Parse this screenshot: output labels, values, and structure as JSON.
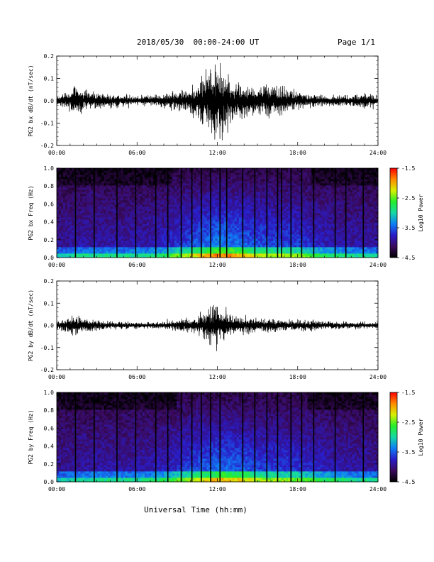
{
  "header": {
    "title": "2018/05/30  00:00-24:00 UT",
    "page": "Page 1/1"
  },
  "x_axis": {
    "label": "Universal Time (hh:mm)",
    "ticks": [
      "00:00",
      "06:00",
      "12:00",
      "18:00",
      "24:00"
    ]
  },
  "colors": {
    "trace": "#000000",
    "colormap": [
      "#000000",
      "#3a0a5c",
      "#2a1cc8",
      "#0f7ef5",
      "#16d9a5",
      "#25ee2b",
      "#d8f000",
      "#ff8a00",
      "#ff0000"
    ]
  },
  "chart_data": [
    {
      "type": "line",
      "title": "",
      "ylabel": "PG2 bx dB/dt (nT/sec)",
      "xlabel": "",
      "xlim": [
        0,
        24
      ],
      "ylim": [
        -0.2,
        0.2
      ],
      "yticks": [
        "0.2",
        "0.1",
        "0.0",
        "-0.1",
        "-0.2"
      ],
      "series": [
        {
          "x": [
            0,
            0.5,
            1,
            1.5,
            2,
            3,
            4,
            5,
            6,
            7,
            8,
            9,
            10,
            10.5,
            11,
            11.5,
            12,
            12.5,
            13,
            14,
            15,
            16,
            17,
            18,
            19,
            20,
            21,
            22,
            23,
            24
          ],
          "values": [
            0.02,
            0.04,
            0.06,
            0.1,
            0.05,
            0.04,
            0.04,
            0.03,
            0.03,
            0.03,
            0.04,
            0.05,
            0.08,
            0.11,
            0.14,
            0.2,
            0.22,
            0.17,
            0.12,
            0.09,
            0.08,
            0.09,
            0.08,
            0.05,
            0.04,
            0.03,
            0.03,
            0.03,
            0.04,
            0.03
          ]
        }
      ]
    },
    {
      "type": "heatmap",
      "title": "",
      "ylabel": "PG2 bx Freq (Hz)",
      "xlabel": "",
      "xlim": [
        0,
        24
      ],
      "ylim": [
        0,
        1.0
      ],
      "yticks": [
        "1.0",
        "0.8",
        "0.6",
        "0.4",
        "0.2",
        "0.0"
      ],
      "colorbar": {
        "label": "Log10 Power",
        "range": [
          -4.5,
          -1.5
        ],
        "ticks": [
          "-1.5",
          "-2.5",
          "-3.5",
          "-4.5"
        ]
      },
      "activity": [
        0.1,
        0.15,
        0.2,
        0.22,
        0.2,
        0.18,
        0.2,
        0.22,
        0.3,
        0.45,
        0.6,
        0.72,
        0.85,
        0.8,
        0.7,
        0.6,
        0.55,
        0.55,
        0.5,
        0.4,
        0.3,
        0.25,
        0.2,
        0.18,
        0.15
      ],
      "spike_times": [
        1.4,
        2.8,
        4.5,
        5.9,
        7.4,
        8.3,
        9.3,
        10.1,
        10.8,
        11.5,
        12.2,
        12.7,
        13.9,
        14.8,
        15.7,
        16.5,
        16.8,
        17.5,
        18.3,
        19.2,
        20.8,
        21.6,
        22.9
      ]
    },
    {
      "type": "line",
      "title": "",
      "ylabel": "PG2 by dB/dt (nT/sec)",
      "xlabel": "",
      "xlim": [
        0,
        24
      ],
      "ylim": [
        -0.2,
        0.2
      ],
      "yticks": [
        "0.2",
        "0.1",
        "0.0",
        "-0.1",
        "-0.2"
      ],
      "series": [
        {
          "x": [
            0,
            0.5,
            1,
            1.5,
            2,
            3,
            4,
            5,
            6,
            7,
            8,
            9,
            10,
            10.5,
            11,
            11.5,
            12,
            12.5,
            13,
            14,
            15,
            16,
            17,
            18,
            19,
            20,
            21,
            22,
            23,
            24
          ],
          "values": [
            0.02,
            0.03,
            0.05,
            0.06,
            0.04,
            0.03,
            0.02,
            0.02,
            0.02,
            0.02,
            0.02,
            0.03,
            0.04,
            0.06,
            0.07,
            0.1,
            0.15,
            0.08,
            0.06,
            0.05,
            0.04,
            0.04,
            0.03,
            0.03,
            0.03,
            0.02,
            0.02,
            0.02,
            0.02,
            0.02
          ]
        }
      ]
    },
    {
      "type": "heatmap",
      "title": "",
      "ylabel": "PG2 by Freq (Hz)",
      "xlabel": "",
      "xlim": [
        0,
        24
      ],
      "ylim": [
        0,
        1.0
      ],
      "yticks": [
        "1.0",
        "0.8",
        "0.6",
        "0.4",
        "0.2",
        "0.0"
      ],
      "colorbar": {
        "label": "Log10 Power",
        "range": [
          -4.5,
          -1.5
        ],
        "ticks": [
          "-1.5",
          "-2.5",
          "-3.5",
          "-4.5"
        ]
      },
      "activity": [
        0.1,
        0.15,
        0.18,
        0.2,
        0.2,
        0.18,
        0.2,
        0.22,
        0.28,
        0.4,
        0.55,
        0.65,
        0.75,
        0.72,
        0.65,
        0.55,
        0.5,
        0.5,
        0.45,
        0.38,
        0.3,
        0.25,
        0.2,
        0.18,
        0.15
      ],
      "spike_times": [
        1.4,
        2.8,
        4.5,
        5.9,
        7.4,
        8.3,
        9.3,
        10.1,
        10.8,
        11.5,
        12.2,
        13.9,
        14.8,
        15.7,
        16.5,
        17.5,
        18.3,
        19.2,
        20.8,
        22.9
      ]
    }
  ]
}
